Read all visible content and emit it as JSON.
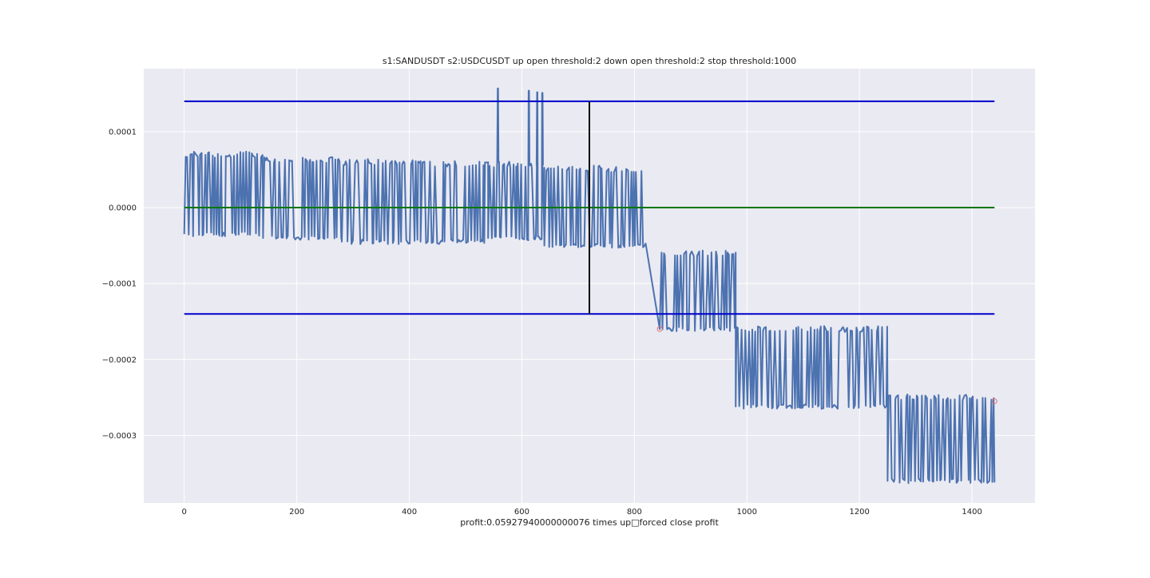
{
  "chart_data": {
    "type": "line",
    "title": "s1:SANDUSDT s2:USDCUSDT up open threshold:2 down open threshold:2 stop threshold:1000",
    "xlabel": "profit:0.05927940000000076 times up□forced close profit",
    "ylabel": "",
    "xlim": [
      -72,
      1512
    ],
    "ylim": [
      -0.000389,
      0.000183
    ],
    "x_ticks": [
      0,
      200,
      400,
      600,
      800,
      1000,
      1200,
      1400
    ],
    "y_ticks": [
      -0.0003,
      -0.0002,
      -0.0001,
      0.0,
      0.0001
    ],
    "x_tick_labels": [
      "0",
      "200",
      "400",
      "600",
      "800",
      "1000",
      "1200",
      "1400"
    ],
    "y_tick_labels": [
      "−0.0003",
      "−0.0002",
      "−0.0001",
      "0.0000",
      "0.0001"
    ],
    "grid": true,
    "background": "#eaeaf2",
    "series": [
      {
        "color": "#4c72b0",
        "style": "spread-oscillating",
        "segments": [
          {
            "x": [
              0,
              140
            ],
            "low": -3.5e-05,
            "high": 7e-05
          },
          {
            "x": [
              140,
              280
            ],
            "low": -4e-05,
            "high": 6.3e-05
          },
          {
            "x": [
              280,
              420
            ],
            "low": -4.5e-05,
            "high": 6e-05
          },
          {
            "x": [
              420,
              540
            ],
            "low": -4.5e-05,
            "high": 5.8e-05
          },
          {
            "x": [
              540,
              590
            ],
            "low": -4e-05,
            "high": 5.7e-05
          },
          {
            "x": [
              590,
              640
            ],
            "low": -4e-05,
            "high": 5.5e-05
          },
          {
            "x": [
              640,
              740
            ],
            "low": -5e-05,
            "high": 5.2e-05
          },
          {
            "x": [
              740,
              820
            ],
            "low": -5e-05,
            "high": 5e-05
          },
          {
            "x": [
              845,
              980
            ],
            "low": -0.00016,
            "high": -6e-05
          },
          {
            "x": [
              980,
              1110
            ],
            "low": -0.000262,
            "high": -0.00016
          },
          {
            "x": [
              1110,
              1250
            ],
            "low": -0.000262,
            "high": -0.00016
          },
          {
            "x": [
              1250,
              1440
            ],
            "low": -0.00036,
            "high": -0.00025
          }
        ],
        "spikes": [
          {
            "x": 557,
            "y": 0.000157
          },
          {
            "x": 612,
            "y": 0.000154
          },
          {
            "x": 627,
            "y": 0.000152
          },
          {
            "x": 636,
            "y": 0.000151
          }
        ]
      },
      {
        "color": "#0000cc",
        "x": [
          0,
          1440
        ],
        "y": [
          0.00014,
          0.00014
        ]
      },
      {
        "color": "#0000cc",
        "x": [
          0,
          1440
        ],
        "y": [
          -0.00014,
          -0.00014
        ]
      },
      {
        "color": "#007700",
        "x": [
          0,
          1440
        ],
        "y": [
          0.0,
          0.0
        ]
      },
      {
        "color": "#000000",
        "x": [
          720,
          720
        ],
        "y": [
          -0.00014,
          0.00014
        ]
      }
    ],
    "markers": [
      {
        "x": 845,
        "y": -0.00016,
        "color": "#e07070"
      },
      {
        "x": 1440,
        "y": -0.000255,
        "color": "#e07070"
      }
    ]
  }
}
